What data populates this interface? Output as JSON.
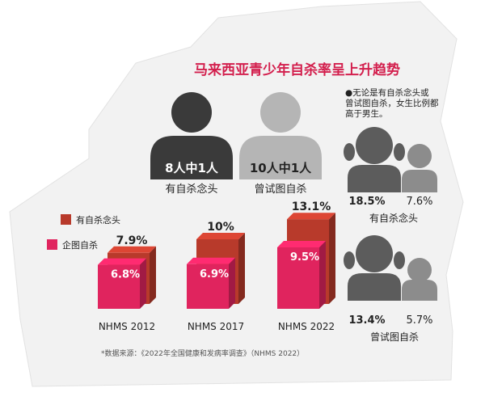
{
  "title": "马来西亚青少年自杀率呈上升趋势",
  "ratios": [
    {
      "value": "8人中1人",
      "label": "有自杀念头"
    },
    {
      "value": "10人中1人",
      "label": "曾试图自杀"
    }
  ],
  "gender_note": "●无论是有自杀念头或曾试图自杀，女生比例都高于男生。",
  "gender_note_lines": [
    "●无论是有自杀念头或",
    "曾试图自杀，女生比例都",
    "高于男生。"
  ],
  "gender": [
    {
      "category": "有自杀念头",
      "female": "18.5%",
      "male": "7.6%"
    },
    {
      "category": "曾试图自杀",
      "female": "13.4%",
      "male": "5.7%"
    }
  ],
  "source": "*数据来源：《2022年全国健康和发病率调查》（NHMS 2022）",
  "colors": {
    "ideation": "#b83a2b",
    "attempt": "#e0245e",
    "title": "#d31f4d",
    "female_icon": "#5c5c5c",
    "male_icon": "#8c8c8c",
    "dark_head": "#3a3a3a",
    "light_head": "#b5b5b5",
    "panel_bg": "#f2f2f2"
  },
  "chart_data": {
    "type": "bar",
    "categories": [
      "NHMS 2012",
      "NHMS 2017",
      "NHMS 2022"
    ],
    "series": [
      {
        "name": "有自杀念头",
        "values": [
          7.9,
          10,
          13.1
        ],
        "labels": [
          "7.9%",
          "10%",
          "13.1%"
        ]
      },
      {
        "name": "企图自杀",
        "values": [
          6.8,
          6.9,
          9.5
        ],
        "labels": [
          "6.8%",
          "6.9%",
          "9.5%"
        ]
      }
    ],
    "legend_position": "top-left",
    "grid": false
  }
}
